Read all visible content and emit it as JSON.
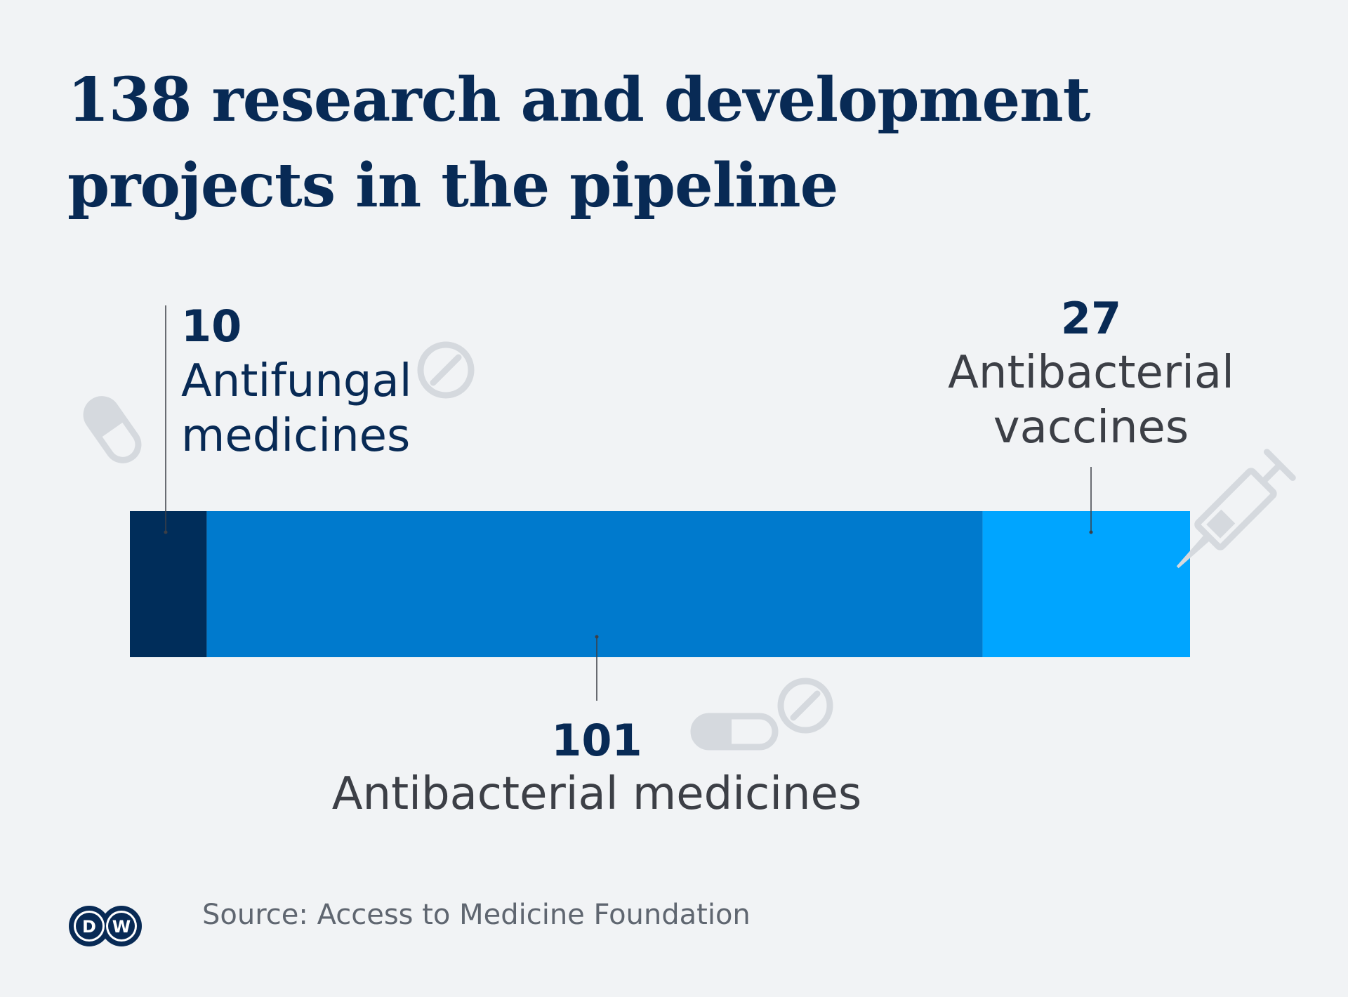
{
  "title": "138 research and development projects in the pipeline",
  "source": "Source: Access to Medicine Foundation",
  "logo_text": "DW",
  "colors": {
    "background": "#f1f3f5",
    "antifungal": "#002d5a",
    "antibacterial_medicines": "#007acd",
    "antibacterial_vaccines": "#00a5ff",
    "icon": "#d5d9de"
  },
  "icons": [
    "capsule-icon",
    "tablet-icon",
    "syringe-icon"
  ],
  "chart_data": {
    "type": "bar",
    "orientation": "horizontal",
    "stacked": true,
    "total": 138,
    "segments": [
      {
        "label_lines": [
          "Antifungal",
          "medicines"
        ],
        "value": 10,
        "color": "#002d5a"
      },
      {
        "label_lines": [
          "Antibacterial medicines"
        ],
        "value": 101,
        "color": "#007acd"
      },
      {
        "label_lines": [
          "Antibacterial",
          "vaccines"
        ],
        "value": 27,
        "color": "#00a5ff"
      }
    ],
    "xlim": [
      0,
      138
    ],
    "grid": false,
    "legend": "none"
  }
}
